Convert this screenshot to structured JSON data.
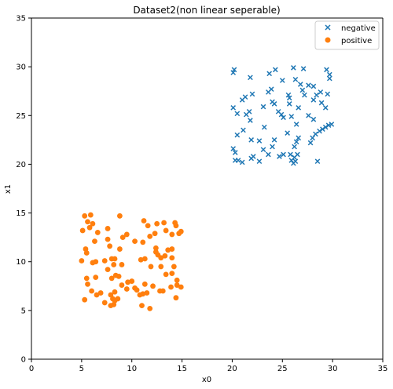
{
  "chart_data": {
    "type": "scatter",
    "title": "Dataset2(non linear seperable)",
    "xlabel": "x0",
    "ylabel": "x1",
    "xlim": [
      0,
      35
    ],
    "ylim": [
      0,
      35
    ],
    "xticks": [
      0,
      5,
      10,
      15,
      20,
      25,
      30,
      35
    ],
    "yticks": [
      0,
      5,
      10,
      15,
      20,
      25,
      30,
      35
    ],
    "grid": false,
    "legend_position": "top-right",
    "series": [
      {
        "name": "negative",
        "marker": "x",
        "color": "#1f77b4",
        "points": [
          [
            20.1,
            29.4
          ],
          [
            20.2,
            29.7
          ],
          [
            21.8,
            28.9
          ],
          [
            23.7,
            29.3
          ],
          [
            24.3,
            29.7
          ],
          [
            26.1,
            29.9
          ],
          [
            27.1,
            29.8
          ],
          [
            29.4,
            29.7
          ],
          [
            29.7,
            29.2
          ],
          [
            29.7,
            28.8
          ],
          [
            26.3,
            28.7
          ],
          [
            26.8,
            28.2
          ],
          [
            27.6,
            28.1
          ],
          [
            28.1,
            28.0
          ],
          [
            27.0,
            27.6
          ],
          [
            25.0,
            28.6
          ],
          [
            23.6,
            27.4
          ],
          [
            23.9,
            27.7
          ],
          [
            22.0,
            27.2
          ],
          [
            21.3,
            26.9
          ],
          [
            21.0,
            26.6
          ],
          [
            25.6,
            27.1
          ],
          [
            25.7,
            26.8
          ],
          [
            27.2,
            27.1
          ],
          [
            28.4,
            27.1
          ],
          [
            28.8,
            27.4
          ],
          [
            29.5,
            27.2
          ],
          [
            24.0,
            26.4
          ],
          [
            24.2,
            26.2
          ],
          [
            25.7,
            26.2
          ],
          [
            28.1,
            26.6
          ],
          [
            28.9,
            26.3
          ],
          [
            29.3,
            25.8
          ],
          [
            20.1,
            25.8
          ],
          [
            20.5,
            25.2
          ],
          [
            21.4,
            25.1
          ],
          [
            21.7,
            25.4
          ],
          [
            23.1,
            25.9
          ],
          [
            24.6,
            25.4
          ],
          [
            24.9,
            25.1
          ],
          [
            25.1,
            24.8
          ],
          [
            25.9,
            24.9
          ],
          [
            26.6,
            25.8
          ],
          [
            27.6,
            25.0
          ],
          [
            28.1,
            24.6
          ],
          [
            21.8,
            24.5
          ],
          [
            23.2,
            23.8
          ],
          [
            26.4,
            24.1
          ],
          [
            20.5,
            23.0
          ],
          [
            21.1,
            23.5
          ],
          [
            21.9,
            22.5
          ],
          [
            22.7,
            22.4
          ],
          [
            24.2,
            22.5
          ],
          [
            25.5,
            23.2
          ],
          [
            26.6,
            22.7
          ],
          [
            26.4,
            22.3
          ],
          [
            26.2,
            21.8
          ],
          [
            27.8,
            22.2
          ],
          [
            28.0,
            22.7
          ],
          [
            28.3,
            23.1
          ],
          [
            28.7,
            23.4
          ],
          [
            29.0,
            23.6
          ],
          [
            29.3,
            23.8
          ],
          [
            29.6,
            24.0
          ],
          [
            29.9,
            24.1
          ],
          [
            20.1,
            21.6
          ],
          [
            20.3,
            21.2
          ],
          [
            20.3,
            20.4
          ],
          [
            20.6,
            20.4
          ],
          [
            21.0,
            20.2
          ],
          [
            21.9,
            20.6
          ],
          [
            22.7,
            20.3
          ],
          [
            23.6,
            21.0
          ],
          [
            24.0,
            21.8
          ],
          [
            24.7,
            20.8
          ],
          [
            25.1,
            21.0
          ],
          [
            25.8,
            21.0
          ],
          [
            26.2,
            20.7
          ],
          [
            26.3,
            20.3
          ],
          [
            25.9,
            20.4
          ],
          [
            26.5,
            21.0
          ],
          [
            26.1,
            20.1
          ],
          [
            28.5,
            20.3
          ],
          [
            22.1,
            20.8
          ],
          [
            23.1,
            21.5
          ]
        ]
      },
      {
        "name": "positive",
        "marker": "o",
        "color": "#ff7f0e",
        "points": [
          [
            5.3,
            14.7
          ],
          [
            5.9,
            14.8
          ],
          [
            5.6,
            14.1
          ],
          [
            6.1,
            13.9
          ],
          [
            5.8,
            13.5
          ],
          [
            5.1,
            13.2
          ],
          [
            6.6,
            13.0
          ],
          [
            7.6,
            13.4
          ],
          [
            8.8,
            14.7
          ],
          [
            11.2,
            14.2
          ],
          [
            11.6,
            13.7
          ],
          [
            12.5,
            13.9
          ],
          [
            13.2,
            14.0
          ],
          [
            14.3,
            14.0
          ],
          [
            14.4,
            13.7
          ],
          [
            13.4,
            13.2
          ],
          [
            14.0,
            12.8
          ],
          [
            14.7,
            12.9
          ],
          [
            14.9,
            13.1
          ],
          [
            12.3,
            12.9
          ],
          [
            11.8,
            12.6
          ],
          [
            11.1,
            12.0
          ],
          [
            10.3,
            12.1
          ],
          [
            9.5,
            12.8
          ],
          [
            9.1,
            12.5
          ],
          [
            7.6,
            12.3
          ],
          [
            6.3,
            12.1
          ],
          [
            5.4,
            11.3
          ],
          [
            5.5,
            10.9
          ],
          [
            7.8,
            11.6
          ],
          [
            8.8,
            11.3
          ],
          [
            12.4,
            11.4
          ],
          [
            12.4,
            11.0
          ],
          [
            13.6,
            11.2
          ],
          [
            14.0,
            11.3
          ],
          [
            12.6,
            10.7
          ],
          [
            13.3,
            10.6
          ],
          [
            12.9,
            10.4
          ],
          [
            14.0,
            10.4
          ],
          [
            10.9,
            10.2
          ],
          [
            11.3,
            10.3
          ],
          [
            8.0,
            10.3
          ],
          [
            8.3,
            10.3
          ],
          [
            7.3,
            10.1
          ],
          [
            6.4,
            10.0
          ],
          [
            6.1,
            9.9
          ],
          [
            5.0,
            10.1
          ],
          [
            8.2,
            9.7
          ],
          [
            9.0,
            9.7
          ],
          [
            11.9,
            9.5
          ],
          [
            12.9,
            9.5
          ],
          [
            14.2,
            9.5
          ],
          [
            14.0,
            8.8
          ],
          [
            7.6,
            9.2
          ],
          [
            8.4,
            8.6
          ],
          [
            8.0,
            8.3
          ],
          [
            8.7,
            8.5
          ],
          [
            10.0,
            8.0
          ],
          [
            13.4,
            8.7
          ],
          [
            5.5,
            8.3
          ],
          [
            5.6,
            7.7
          ],
          [
            6.4,
            8.4
          ],
          [
            9.0,
            7.6
          ],
          [
            9.6,
            7.9
          ],
          [
            10.3,
            7.3
          ],
          [
            11.3,
            7.7
          ],
          [
            12.1,
            7.5
          ],
          [
            14.5,
            8.1
          ],
          [
            14.5,
            7.6
          ],
          [
            14.9,
            7.4
          ],
          [
            13.9,
            7.4
          ],
          [
            13.1,
            7.0
          ],
          [
            12.8,
            7.0
          ],
          [
            10.5,
            7.1
          ],
          [
            9.5,
            7.2
          ],
          [
            8.3,
            6.9
          ],
          [
            7.9,
            6.6
          ],
          [
            6.9,
            6.8
          ],
          [
            6.5,
            6.6
          ],
          [
            6.0,
            7.0
          ],
          [
            11.1,
            6.7
          ],
          [
            11.5,
            6.8
          ],
          [
            5.3,
            6.1
          ],
          [
            7.3,
            5.8
          ],
          [
            8.1,
            6.2
          ],
          [
            8.6,
            6.2
          ],
          [
            8.3,
            6.0
          ],
          [
            7.9,
            5.5
          ],
          [
            8.2,
            5.6
          ],
          [
            10.8,
            6.6
          ],
          [
            11.0,
            5.5
          ],
          [
            11.8,
            5.2
          ],
          [
            14.4,
            6.3
          ]
        ]
      }
    ]
  }
}
